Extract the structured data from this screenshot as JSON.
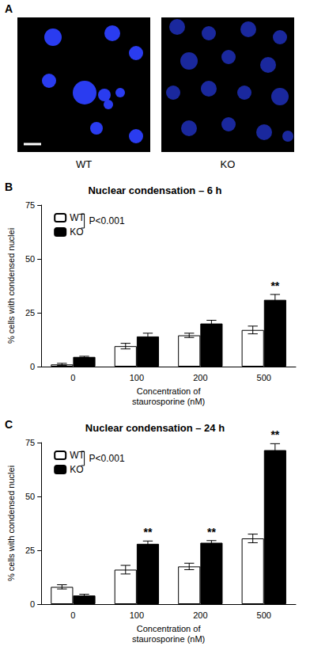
{
  "image_panel": {
    "panel_letter": "A",
    "labels": [
      "WT",
      "KO"
    ]
  },
  "chart_data": [
    {
      "type": "bar",
      "panel_letter": "B",
      "title": "Nuclear condensation – 6 h",
      "xlabel": "Concentration of staurosporine (nM)",
      "ylabel": "% cells with condensed nuclei",
      "categories": [
        "0",
        "100",
        "200",
        "500"
      ],
      "series": [
        {
          "name": "WT",
          "color": "#ffffff",
          "values": [
            1,
            9.5,
            14.5,
            17
          ],
          "errors": [
            0.5,
            1.3,
            1.0,
            1.8
          ]
        },
        {
          "name": "KO",
          "color": "#000000",
          "values": [
            4.5,
            14,
            20,
            31
          ],
          "errors": [
            0.3,
            1.5,
            1.5,
            2.5
          ]
        }
      ],
      "ylim": [
        0,
        75
      ],
      "yticks": [
        0,
        25,
        50,
        75
      ],
      "grid": false,
      "legend": "top-left",
      "legend_note": "P<0.001",
      "annotations": [
        {
          "category": "500",
          "series": "KO",
          "text": "**"
        }
      ]
    },
    {
      "type": "bar",
      "panel_letter": "C",
      "title": "Nuclear condensation – 24 h",
      "xlabel": "Concentration of staurosporine (nM)",
      "ylabel": "% cells with condensed nuclei",
      "categories": [
        "0",
        "100",
        "200",
        "500"
      ],
      "series": [
        {
          "name": "WT",
          "color": "#ffffff",
          "values": [
            8,
            16,
            17.5,
            30.5
          ],
          "errors": [
            1,
            2,
            1.5,
            2
          ]
        },
        {
          "name": "KO",
          "color": "#000000",
          "values": [
            4,
            28,
            28.5,
            71.5
          ],
          "errors": [
            0.6,
            1.3,
            1,
            3
          ]
        }
      ],
      "ylim": [
        0,
        75
      ],
      "yticks": [
        0,
        25,
        50,
        75
      ],
      "grid": false,
      "legend": "top-left",
      "legend_note": "P<0.001",
      "annotations": [
        {
          "category": "100",
          "series": "KO",
          "text": "**"
        },
        {
          "category": "200",
          "series": "KO",
          "text": "**"
        },
        {
          "category": "500",
          "series": "KO",
          "text": "**"
        }
      ]
    }
  ]
}
